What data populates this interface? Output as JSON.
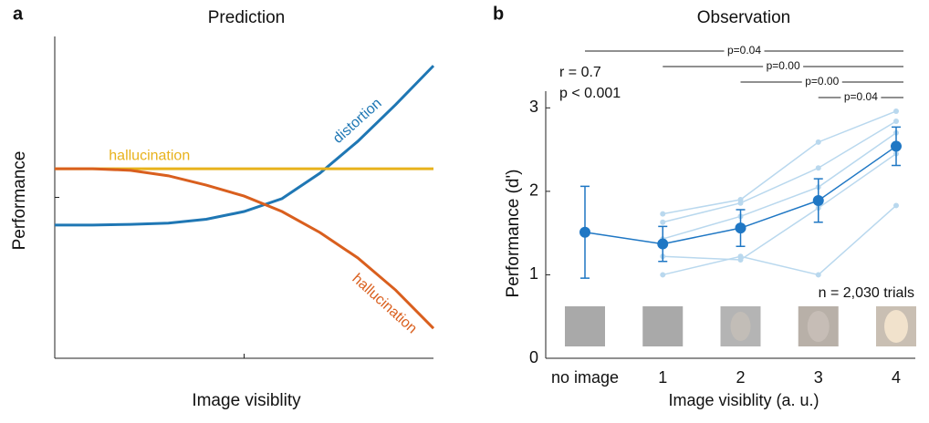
{
  "chart_data": [
    {
      "type": "line",
      "panel": "a",
      "title": "Prediction",
      "xlabel": "Image visiblity",
      "ylabel": "Performance",
      "x": [
        0,
        0.1,
        0.2,
        0.3,
        0.4,
        0.5,
        0.6,
        0.7,
        0.8,
        0.9,
        1
      ],
      "xlim": [
        0,
        1
      ],
      "ylim": [
        0,
        1
      ],
      "series": [
        {
          "name": "distortion",
          "color": "#1f77b4",
          "values": [
            0.414,
            0.414,
            0.416,
            0.42,
            0.432,
            0.456,
            0.496,
            0.575,
            0.674,
            0.788,
            0.909
          ]
        },
        {
          "name": "hallucination",
          "color": "#e8b21c",
          "values": [
            0.589,
            0.589,
            0.589,
            0.589,
            0.589,
            0.589,
            0.589,
            0.589,
            0.589,
            0.589,
            0.589
          ]
        },
        {
          "name": "hallucination",
          "color": "#d95f1e",
          "values": [
            0.589,
            0.589,
            0.584,
            0.567,
            0.538,
            0.504,
            0.456,
            0.391,
            0.312,
            0.212,
            0.093
          ]
        }
      ]
    },
    {
      "type": "errorline",
      "panel": "b",
      "title": "Observation",
      "xlabel": "Image visiblity (a. u.)",
      "ylabel": "Performance (d')",
      "categories": [
        "no image",
        "1",
        "2",
        "3",
        "4"
      ],
      "ylim": [
        0,
        3.2
      ],
      "yticks": [
        0,
        1,
        2,
        3
      ],
      "subjects": {
        "color": "#b9d8ee",
        "series": [
          {
            "values": [
              null,
              1.73,
              1.9,
              2.59,
              2.96
            ]
          },
          {
            "values": [
              null,
              1.63,
              1.86,
              2.28,
              2.84
            ]
          },
          {
            "values": [
              null,
              1.43,
              1.7,
              2.05,
              2.7
            ]
          },
          {
            "values": [
              null,
              1.22,
              1.18,
              1.8,
              2.45
            ]
          },
          {
            "values": [
              null,
              1.0,
              1.22,
              1.0,
              1.83
            ]
          }
        ]
      },
      "mean": {
        "color": "#1f77c4",
        "values": [
          1.51,
          1.37,
          1.56,
          1.89,
          2.54
        ],
        "errors": [
          0.55,
          0.21,
          0.22,
          0.26,
          0.23
        ]
      },
      "comparisons": [
        {
          "from": "no image",
          "to": "4",
          "label": "p=0.04"
        },
        {
          "from": "1",
          "to": "4",
          "label": "p=0.00"
        },
        {
          "from": "2",
          "to": "4",
          "label": "p=0.00"
        },
        {
          "from": "3",
          "to": "4",
          "label": "p=0.04"
        }
      ],
      "annotations": [
        "r = 0.7",
        "p < 0.001",
        "n = 2,030 trials"
      ]
    }
  ]
}
